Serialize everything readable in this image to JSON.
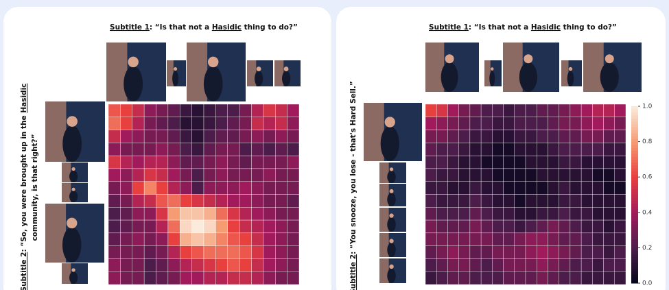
{
  "chart_data": [
    {
      "type": "heatmap",
      "x_label": {
        "prefix": "Subtitle 1",
        "text": [
          ": “Is that not a ",
          "Hasidic",
          " thing to do?”"
        ]
      },
      "y_label": {
        "prefix": "Subtitle 2",
        "line1": [
          ": “So, you were brought up in the ",
          "Hasidic"
        ],
        "line2": "community, is that right?”"
      },
      "colorscale": [
        "#03051a",
        "#4c1d4b",
        "#a11a5b",
        "#e83f3f",
        "#f69c73",
        "#faebdd"
      ],
      "values": [
        [
          0.65,
          0.6,
          0.5,
          0.35,
          0.3,
          0.25,
          0.15,
          0.1,
          0.15,
          0.2,
          0.2,
          0.3,
          0.45,
          0.55,
          0.5,
          0.4
        ],
        [
          0.7,
          0.6,
          0.45,
          0.3,
          0.25,
          0.2,
          0.1,
          0.1,
          0.15,
          0.2,
          0.25,
          0.3,
          0.5,
          0.45,
          0.5,
          0.35
        ],
        [
          0.5,
          0.4,
          0.35,
          0.3,
          0.3,
          0.25,
          0.15,
          0.1,
          0.2,
          0.25,
          0.25,
          0.3,
          0.35,
          0.3,
          0.35,
          0.3
        ],
        [
          0.35,
          0.3,
          0.3,
          0.3,
          0.35,
          0.3,
          0.2,
          0.15,
          0.25,
          0.3,
          0.3,
          0.2,
          0.25,
          0.2,
          0.25,
          0.2
        ],
        [
          0.55,
          0.45,
          0.4,
          0.45,
          0.45,
          0.35,
          0.25,
          0.25,
          0.3,
          0.35,
          0.3,
          0.25,
          0.3,
          0.3,
          0.3,
          0.35
        ],
        [
          0.4,
          0.35,
          0.45,
          0.55,
          0.5,
          0.4,
          0.3,
          0.2,
          0.3,
          0.35,
          0.3,
          0.3,
          0.3,
          0.35,
          0.3,
          0.3
        ],
        [
          0.3,
          0.35,
          0.6,
          0.75,
          0.6,
          0.45,
          0.35,
          0.2,
          0.35,
          0.35,
          0.35,
          0.4,
          0.35,
          0.3,
          0.3,
          0.3
        ],
        [
          0.25,
          0.3,
          0.45,
          0.5,
          0.65,
          0.7,
          0.6,
          0.55,
          0.5,
          0.45,
          0.4,
          0.4,
          0.35,
          0.3,
          0.3,
          0.25
        ],
        [
          0.2,
          0.25,
          0.35,
          0.35,
          0.55,
          0.8,
          0.9,
          0.9,
          0.85,
          0.7,
          0.55,
          0.45,
          0.4,
          0.35,
          0.3,
          0.3
        ],
        [
          0.2,
          0.25,
          0.3,
          0.3,
          0.45,
          0.7,
          0.95,
          1.0,
          0.95,
          0.8,
          0.6,
          0.5,
          0.45,
          0.4,
          0.35,
          0.3
        ],
        [
          0.25,
          0.3,
          0.35,
          0.3,
          0.35,
          0.6,
          0.85,
          0.9,
          0.85,
          0.75,
          0.65,
          0.6,
          0.5,
          0.4,
          0.35,
          0.3
        ],
        [
          0.3,
          0.3,
          0.3,
          0.25,
          0.3,
          0.45,
          0.6,
          0.65,
          0.7,
          0.7,
          0.7,
          0.65,
          0.55,
          0.4,
          0.35,
          0.3
        ],
        [
          0.35,
          0.3,
          0.3,
          0.2,
          0.25,
          0.35,
          0.45,
          0.5,
          0.55,
          0.6,
          0.65,
          0.6,
          0.5,
          0.4,
          0.35,
          0.3
        ],
        [
          0.35,
          0.3,
          0.3,
          0.2,
          0.25,
          0.3,
          0.4,
          0.4,
          0.45,
          0.45,
          0.5,
          0.5,
          0.45,
          0.35,
          0.3,
          0.3
        ]
      ]
    },
    {
      "type": "heatmap",
      "x_label": {
        "prefix": "Subtitle 1",
        "text": [
          ": “Is that not a ",
          "Hasidic",
          " thing to do?”"
        ]
      },
      "y_label": {
        "prefix": "Subtitle 2",
        "line1": [
          ": “You snooze, you lose - that's Hard Sell.”"
        ]
      },
      "colorscale": [
        "#03051a",
        "#4c1d4b",
        "#a11a5b",
        "#e83f3f",
        "#f69c73",
        "#faebdd"
      ],
      "zlim": [
        0,
        1
      ],
      "zticks": [
        {
          "value": 0,
          "label": "0.0"
        },
        0.2,
        0.4,
        0.6,
        0.8,
        {
          "value": 1,
          "label": "1.0"
        }
      ],
      "values": [
        [
          0.6,
          0.55,
          0.4,
          0.3,
          0.25,
          0.2,
          0.2,
          0.15,
          0.2,
          0.2,
          0.25,
          0.25,
          0.3,
          0.35,
          0.4,
          0.45,
          0.45,
          0.4
        ],
        [
          0.4,
          0.35,
          0.3,
          0.25,
          0.2,
          0.2,
          0.15,
          0.15,
          0.2,
          0.2,
          0.2,
          0.25,
          0.3,
          0.3,
          0.35,
          0.4,
          0.35,
          0.3
        ],
        [
          0.3,
          0.3,
          0.25,
          0.2,
          0.15,
          0.15,
          0.1,
          0.1,
          0.15,
          0.15,
          0.2,
          0.2,
          0.25,
          0.25,
          0.3,
          0.3,
          0.25,
          0.25
        ],
        [
          0.25,
          0.2,
          0.2,
          0.15,
          0.1,
          0.1,
          0.05,
          0.05,
          0.1,
          0.1,
          0.1,
          0.15,
          0.2,
          0.2,
          0.2,
          0.2,
          0.15,
          0.15
        ],
        [
          0.2,
          0.2,
          0.15,
          0.1,
          0.1,
          0.05,
          0.05,
          0.05,
          0.05,
          0.1,
          0.1,
          0.1,
          0.15,
          0.15,
          0.1,
          0.1,
          0.1,
          0.1
        ],
        [
          0.2,
          0.15,
          0.15,
          0.1,
          0.1,
          0.1,
          0.05,
          0.05,
          0.05,
          0.05,
          0.1,
          0.1,
          0.1,
          0.1,
          0.1,
          0.05,
          0.05,
          0.1
        ],
        [
          0.15,
          0.15,
          0.1,
          0.1,
          0.15,
          0.1,
          0.1,
          0.05,
          0.05,
          0.05,
          0.05,
          0.1,
          0.15,
          0.1,
          0.1,
          0.1,
          0.05,
          0.05
        ],
        [
          0.2,
          0.15,
          0.15,
          0.15,
          0.2,
          0.15,
          0.1,
          0.1,
          0.05,
          0.1,
          0.1,
          0.1,
          0.15,
          0.15,
          0.1,
          0.1,
          0.1,
          0.1
        ],
        [
          0.25,
          0.2,
          0.2,
          0.2,
          0.25,
          0.2,
          0.15,
          0.15,
          0.1,
          0.1,
          0.15,
          0.15,
          0.2,
          0.15,
          0.15,
          0.1,
          0.1,
          0.1
        ],
        [
          0.3,
          0.25,
          0.25,
          0.25,
          0.3,
          0.25,
          0.2,
          0.2,
          0.15,
          0.2,
          0.25,
          0.3,
          0.25,
          0.2,
          0.15,
          0.15,
          0.1,
          0.15
        ],
        [
          0.3,
          0.3,
          0.3,
          0.3,
          0.3,
          0.3,
          0.25,
          0.25,
          0.3,
          0.35,
          0.35,
          0.3,
          0.25,
          0.25,
          0.2,
          0.15,
          0.15,
          0.15
        ],
        [
          0.25,
          0.3,
          0.35,
          0.3,
          0.25,
          0.25,
          0.3,
          0.3,
          0.3,
          0.35,
          0.4,
          0.35,
          0.3,
          0.25,
          0.2,
          0.2,
          0.15,
          0.2
        ],
        [
          0.2,
          0.25,
          0.3,
          0.3,
          0.25,
          0.2,
          0.25,
          0.3,
          0.3,
          0.3,
          0.35,
          0.3,
          0.25,
          0.2,
          0.2,
          0.15,
          0.2,
          0.2
        ],
        [
          0.15,
          0.2,
          0.25,
          0.25,
          0.2,
          0.2,
          0.2,
          0.25,
          0.25,
          0.25,
          0.3,
          0.25,
          0.2,
          0.2,
          0.15,
          0.15,
          0.15,
          0.15
        ]
      ]
    }
  ]
}
